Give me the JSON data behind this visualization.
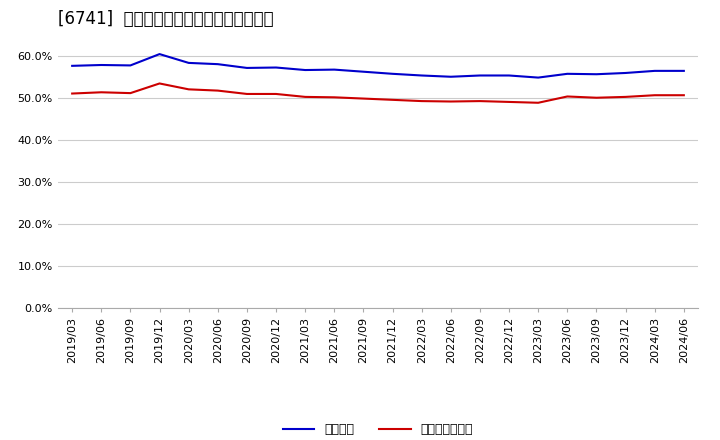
{
  "title": "[6741]  固定比率、固定長期適合率の推移",
  "ylim": [
    0.0,
    0.65
  ],
  "yticks": [
    0.0,
    0.1,
    0.2,
    0.3,
    0.4,
    0.5,
    0.6
  ],
  "legend_label_blue": "固定比率",
  "legend_label_red": "固定長期適合率",
  "x_labels": [
    "2019/03",
    "2019/06",
    "2019/09",
    "2019/12",
    "2020/03",
    "2020/06",
    "2020/09",
    "2020/12",
    "2021/03",
    "2021/06",
    "2021/09",
    "2021/12",
    "2022/03",
    "2022/06",
    "2022/09",
    "2022/12",
    "2023/03",
    "2023/06",
    "2023/09",
    "2023/12",
    "2024/03",
    "2024/06"
  ],
  "fixed_ratio": [
    0.577,
    0.579,
    0.578,
    0.605,
    0.584,
    0.581,
    0.572,
    0.573,
    0.567,
    0.568,
    0.563,
    0.558,
    0.554,
    0.551,
    0.554,
    0.554,
    0.549,
    0.558,
    0.557,
    0.56,
    0.565,
    0.565
  ],
  "fixed_long_ratio": [
    0.511,
    0.514,
    0.512,
    0.535,
    0.521,
    0.518,
    0.51,
    0.51,
    0.503,
    0.502,
    0.499,
    0.496,
    0.493,
    0.492,
    0.493,
    0.491,
    0.489,
    0.504,
    0.501,
    0.503,
    0.507,
    0.507
  ],
  "line_color_blue": "#0000cc",
  "line_color_red": "#cc0000",
  "bg_color": "#ffffff",
  "grid_color": "#cccccc",
  "title_fontsize": 12,
  "tick_fontsize": 8,
  "legend_fontsize": 9
}
